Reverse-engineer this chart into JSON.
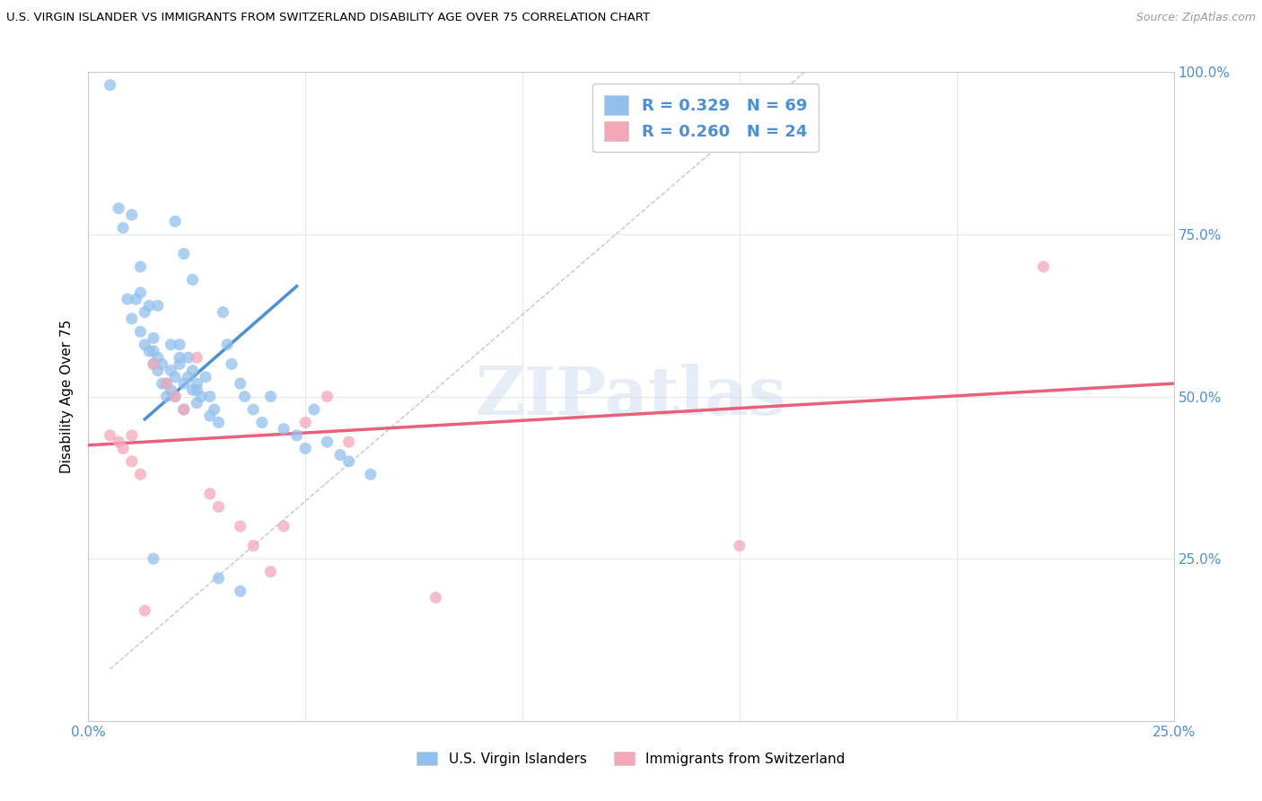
{
  "title": "U.S. VIRGIN ISLANDER VS IMMIGRANTS FROM SWITZERLAND DISABILITY AGE OVER 75 CORRELATION CHART",
  "source": "Source: ZipAtlas.com",
  "ylabel": "Disability Age Over 75",
  "xlim": [
    0.0,
    0.25
  ],
  "ylim": [
    0.0,
    1.0
  ],
  "x_ticks": [
    0.0,
    0.05,
    0.1,
    0.15,
    0.2,
    0.25
  ],
  "x_tick_labels": [
    "0.0%",
    "",
    "",
    "",
    "",
    "25.0%"
  ],
  "y_ticks": [
    0.0,
    0.25,
    0.5,
    0.75,
    1.0
  ],
  "y_tick_labels": [
    "",
    "25.0%",
    "50.0%",
    "75.0%",
    "100.0%"
  ],
  "blue_color": "#92C0ED",
  "blue_line_color": "#4A90D9",
  "pink_color": "#F4A7B9",
  "pink_line_color": "#E8607A",
  "dashed_line_color": "#AABBD4",
  "legend_R1": "R = 0.329",
  "legend_N1": "N = 69",
  "legend_R2": "R = 0.260",
  "legend_N2": "N = 24",
  "watermark": "ZIPatlas",
  "blue_scatter_x": [
    0.005,
    0.007,
    0.008,
    0.009,
    0.01,
    0.011,
    0.012,
    0.012,
    0.013,
    0.013,
    0.014,
    0.014,
    0.015,
    0.015,
    0.015,
    0.016,
    0.016,
    0.017,
    0.017,
    0.018,
    0.018,
    0.019,
    0.019,
    0.02,
    0.02,
    0.021,
    0.021,
    0.022,
    0.022,
    0.023,
    0.023,
    0.024,
    0.024,
    0.025,
    0.025,
    0.026,
    0.027,
    0.028,
    0.029,
    0.03,
    0.031,
    0.032,
    0.033,
    0.035,
    0.036,
    0.038,
    0.04,
    0.042,
    0.045,
    0.048,
    0.05,
    0.052,
    0.055,
    0.058,
    0.06,
    0.065,
    0.01,
    0.02,
    0.022,
    0.024,
    0.015,
    0.03,
    0.035,
    0.012,
    0.016,
    0.019,
    0.021,
    0.025,
    0.028
  ],
  "blue_scatter_y": [
    0.98,
    0.79,
    0.76,
    0.65,
    0.62,
    0.65,
    0.6,
    0.66,
    0.58,
    0.63,
    0.57,
    0.64,
    0.55,
    0.57,
    0.59,
    0.56,
    0.54,
    0.52,
    0.55,
    0.52,
    0.5,
    0.54,
    0.51,
    0.53,
    0.5,
    0.58,
    0.55,
    0.52,
    0.48,
    0.56,
    0.53,
    0.54,
    0.51,
    0.52,
    0.49,
    0.5,
    0.53,
    0.5,
    0.48,
    0.46,
    0.63,
    0.58,
    0.55,
    0.52,
    0.5,
    0.48,
    0.46,
    0.5,
    0.45,
    0.44,
    0.42,
    0.48,
    0.43,
    0.41,
    0.4,
    0.38,
    0.78,
    0.77,
    0.72,
    0.68,
    0.25,
    0.22,
    0.2,
    0.7,
    0.64,
    0.58,
    0.56,
    0.51,
    0.47
  ],
  "pink_scatter_x": [
    0.005,
    0.007,
    0.008,
    0.01,
    0.012,
    0.015,
    0.018,
    0.02,
    0.022,
    0.025,
    0.028,
    0.03,
    0.035,
    0.038,
    0.042,
    0.045,
    0.05,
    0.055,
    0.06,
    0.08,
    0.15,
    0.22,
    0.01,
    0.013
  ],
  "pink_scatter_y": [
    0.44,
    0.43,
    0.42,
    0.4,
    0.38,
    0.55,
    0.52,
    0.5,
    0.48,
    0.56,
    0.35,
    0.33,
    0.3,
    0.27,
    0.23,
    0.3,
    0.46,
    0.5,
    0.43,
    0.19,
    0.27,
    0.7,
    0.44,
    0.17
  ],
  "blue_line_x": [
    0.013,
    0.048
  ],
  "blue_line_y": [
    0.465,
    0.67
  ],
  "pink_line_x": [
    0.0,
    0.25
  ],
  "pink_line_y": [
    0.425,
    0.52
  ],
  "dashed_line_x": [
    0.005,
    0.165
  ],
  "dashed_line_y": [
    0.08,
    1.0
  ],
  "background_color": "#FFFFFF",
  "grid_color": "#E8E8E8",
  "bottom_legend_x1": "U.S. Virgin Islanders",
  "bottom_legend_x2": "Immigrants from Switzerland"
}
